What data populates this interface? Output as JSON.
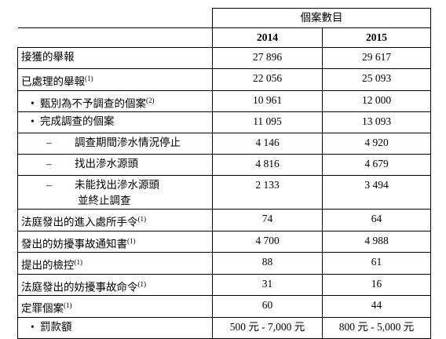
{
  "header": {
    "group": "個案數目",
    "years": [
      "2014",
      "2015"
    ]
  },
  "rows": [
    {
      "label": [
        "接獲的舉報"
      ],
      "values": [
        "27 896",
        "29 617"
      ]
    },
    {
      "label": [
        "已處理的舉報"
      ],
      "note": "(1)",
      "values": [
        "22 056",
        "25 093"
      ]
    },
    {
      "marker": "•",
      "label": [
        "甄別為不予調查的個案"
      ],
      "note": "(2)",
      "values": [
        "10 961",
        "12 000"
      ]
    },
    {
      "marker": "•",
      "label": [
        "完成調查的個案"
      ],
      "values": [
        "11 095",
        "13 093"
      ]
    },
    {
      "marker": "–",
      "label": [
        "調查期間滲水情況停止"
      ],
      "values": [
        "4 146",
        "4 920"
      ]
    },
    {
      "marker": "–",
      "label": [
        "找出滲水源頭"
      ],
      "values": [
        "4 816",
        "4 679"
      ]
    },
    {
      "marker": "–",
      "label": [
        "未能找出滲水源頭",
        "並終止調查"
      ],
      "values": [
        "2 133",
        "3 494"
      ]
    },
    {
      "label": [
        "法庭發出的進入處所手令"
      ],
      "note": "(1)",
      "values": [
        "74",
        "64"
      ]
    },
    {
      "label": [
        "發出的妨擾事故通知書"
      ],
      "note": "(1)",
      "values": [
        "4 700",
        "4 988"
      ]
    },
    {
      "label": [
        "提出的檢控"
      ],
      "note": "(1)",
      "values": [
        "88",
        "61"
      ]
    },
    {
      "label": [
        "法庭發出的妨擾事故命令"
      ],
      "note": "(1)",
      "values": [
        "31",
        "16"
      ]
    },
    {
      "label": [
        "定罪個案"
      ],
      "note": "(1)",
      "values": [
        "60",
        "44"
      ]
    },
    {
      "marker": "•",
      "label": [
        "罰款額"
      ],
      "values": [
        "500 元 - 7,000 元",
        "800 元 - 5,000 元"
      ]
    }
  ]
}
